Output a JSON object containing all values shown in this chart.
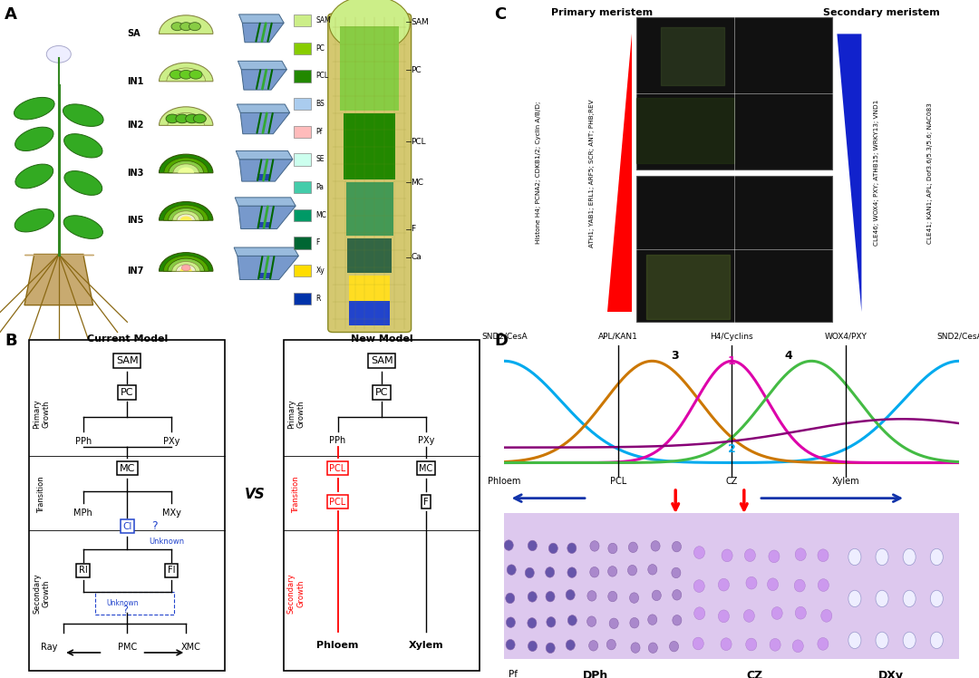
{
  "background_color": "#ffffff",
  "panel_A": {
    "label": "A",
    "stages": [
      "SA",
      "IN1",
      "IN2",
      "IN3",
      "IN5",
      "IN7"
    ],
    "legend_items": [
      {
        "label": "SAM",
        "color": "#ccee88"
      },
      {
        "label": "PC",
        "color": "#88cc00"
      },
      {
        "label": "PCL",
        "color": "#228800"
      },
      {
        "label": "BS",
        "color": "#aaccee"
      },
      {
        "label": "Pf",
        "color": "#ffbbbb"
      },
      {
        "label": "SE",
        "color": "#ccffee"
      },
      {
        "label": "Pa",
        "color": "#44ccaa"
      },
      {
        "label": "MC",
        "color": "#009966"
      },
      {
        "label": "F",
        "color": "#006633"
      },
      {
        "label": "Xy",
        "color": "#ffdd00"
      },
      {
        "label": "R",
        "color": "#0033aa"
      }
    ]
  },
  "panel_B": {
    "label": "B",
    "current_model_title": "Current Model",
    "new_model_title": "New Model",
    "vs_text": "VS"
  },
  "panel_C": {
    "label": "C",
    "primary_title": "Primary meristem",
    "secondary_title": "Secondary meristem"
  },
  "panel_D": {
    "label": "D",
    "curve_labels": [
      "SND2/CesA",
      "APL/KAN1",
      "H4/Cyclins",
      "WOX4/PXY",
      "SND2/CesA"
    ],
    "x_labels": [
      "Phloem",
      "PCL",
      "CZ",
      "Xylem"
    ],
    "zone_labels": [
      "Pf",
      "DPh",
      "CZ",
      "DXy"
    ],
    "curve_colors": [
      "#00aaee",
      "#cc7700",
      "#cc00aa",
      "#44bb44",
      "#9900aa"
    ],
    "arrow_color": "#1133aa",
    "red_arrow_color": "#cc0000"
  }
}
